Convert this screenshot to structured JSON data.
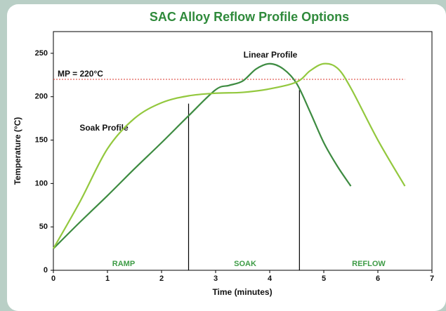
{
  "chart_data": {
    "type": "line",
    "title": "SAC Alloy Reflow Profile Options",
    "xlabel": "Time (minutes)",
    "ylabel": "Temperature (°C)",
    "xlim": [
      0,
      7
    ],
    "xticks": [
      0,
      1,
      2,
      3,
      4,
      5,
      6,
      7
    ],
    "ylim": [
      0,
      275
    ],
    "yticks": [
      0,
      50,
      100,
      150,
      200,
      250
    ],
    "grid": false,
    "series": [
      {
        "name": "Linear Profile",
        "color": "#3d8b41",
        "x": [
          0,
          0.5,
          1,
          1.5,
          2,
          2.5,
          3,
          3.25,
          3.5,
          3.75,
          4,
          4.25,
          4.5,
          4.75,
          5,
          5.25,
          5.5
        ],
        "values": [
          25,
          56,
          86,
          117,
          147,
          178,
          208,
          213,
          218,
          232,
          238,
          232,
          215,
          182,
          147,
          120,
          97
        ]
      },
      {
        "name": "Soak Profile",
        "color": "#93c83e",
        "x": [
          0,
          0.5,
          1,
          1.5,
          2,
          2.5,
          3,
          3.5,
          4,
          4.5,
          4.75,
          5,
          5.25,
          5.5,
          6,
          6.5
        ],
        "values": [
          25,
          80,
          140,
          175,
          193,
          201,
          204,
          205,
          209,
          217,
          230,
          238,
          233,
          210,
          150,
          97
        ]
      }
    ],
    "melting_point": {
      "label": "MP = 220°C",
      "value": 220,
      "x_end": 6.5
    },
    "phase_lines": [
      {
        "x": 2.5,
        "top": 192
      },
      {
        "x": 4.55,
        "top": 208
      }
    ],
    "phases": [
      "RAMP",
      "SOAK",
      "REFLOW"
    ]
  }
}
